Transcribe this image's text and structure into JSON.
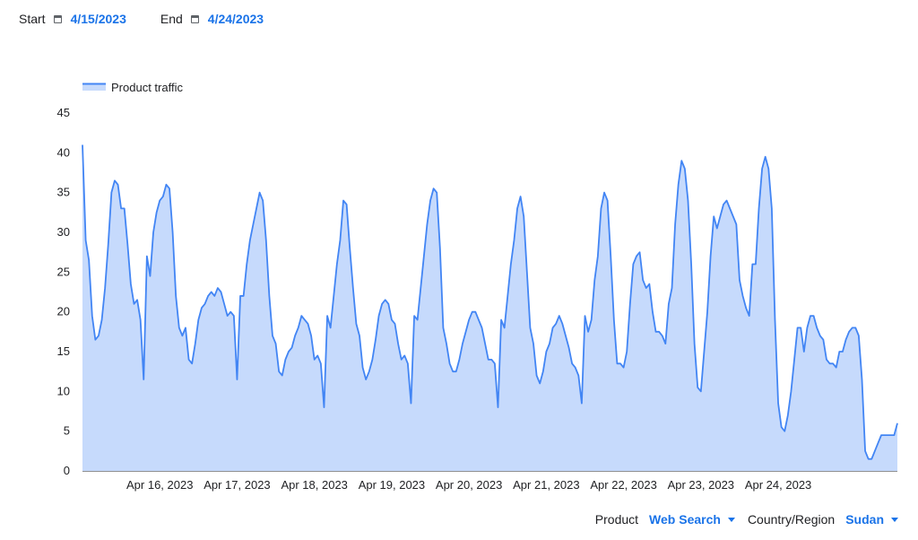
{
  "controls": {
    "start_label": "Start",
    "start_date": "4/15/2023",
    "end_label": "End",
    "end_date": "4/24/2023",
    "product_label": "Product",
    "product_value": "Web Search",
    "region_label": "Country/Region",
    "region_value": "Sudan"
  },
  "colors": {
    "line": "#4285f4",
    "fill": "#c6dafc",
    "accent": "#1a73e8"
  },
  "chart_data": {
    "type": "area",
    "legend": {
      "position": "top-left",
      "items": [
        "Product traffic"
      ]
    },
    "x_range": [
      "Apr 15, 2023",
      "Apr 24, 2023"
    ],
    "x_ticks": [
      "Apr 16, 2023",
      "Apr 17, 2023",
      "Apr 18, 2023",
      "Apr 19, 2023",
      "Apr 20, 2023",
      "Apr 21, 2023",
      "Apr 22, 2023",
      "Apr 23, 2023",
      "Apr 24, 2023"
    ],
    "y_ticks": [
      0,
      5,
      10,
      15,
      20,
      25,
      30,
      35,
      40,
      45
    ],
    "ylim": [
      0,
      45
    ],
    "grid": false,
    "series": [
      {
        "name": "Product traffic",
        "hours_step": 1,
        "values": [
          41,
          29,
          26.5,
          19.5,
          16.5,
          17,
          19,
          23,
          28.5,
          35,
          36.5,
          36,
          33,
          33,
          28.5,
          23.5,
          21,
          21.5,
          19,
          11.5,
          27,
          24.5,
          30,
          32.5,
          34,
          34.5,
          36,
          35.5,
          30,
          22,
          18,
          17,
          18,
          14,
          13.5,
          16,
          19,
          20.5,
          21,
          22,
          22.5,
          22,
          23,
          22.5,
          21,
          19.5,
          20,
          19.5,
          11.5,
          22,
          22,
          26,
          29,
          31,
          33,
          35,
          34,
          29,
          22,
          17,
          16,
          12.5,
          12,
          14,
          15,
          15.5,
          17,
          18,
          19.5,
          19,
          18.5,
          17,
          14,
          14.5,
          13.5,
          8,
          19.5,
          18,
          22,
          26,
          29,
          34,
          33.5,
          28,
          23,
          18.5,
          17,
          13,
          11.5,
          12.5,
          14,
          16.5,
          19.5,
          21,
          21.5,
          21,
          19,
          18.5,
          16,
          14,
          14.5,
          13.5,
          8.5,
          19.5,
          19,
          23,
          27,
          31,
          34,
          35.5,
          35,
          28,
          18,
          16,
          13.5,
          12.5,
          12.5,
          14,
          16,
          17.5,
          19,
          20,
          20,
          19,
          18,
          16,
          14,
          14,
          13.5,
          8,
          19,
          18,
          22,
          26,
          29,
          33,
          34.5,
          32,
          25,
          18,
          16,
          12,
          11,
          12.5,
          15,
          16,
          18,
          18.5,
          19.5,
          18.5,
          17,
          15.5,
          13.5,
          13,
          12,
          8.5,
          19.5,
          17.5,
          19,
          24,
          27,
          33,
          35,
          34,
          27,
          19,
          13.5,
          13.5,
          13,
          15,
          21,
          26,
          27,
          27.5,
          24,
          23,
          23.5,
          20,
          17.5,
          17.5,
          17,
          16,
          21,
          23,
          31,
          36,
          39,
          38,
          34,
          26,
          16,
          10.5,
          10,
          15,
          20,
          27,
          32,
          30.5,
          32,
          33.5,
          34,
          33,
          32,
          31,
          24,
          22,
          20.5,
          19.5,
          26,
          26,
          33,
          38,
          39.5,
          38,
          33,
          19,
          8.5,
          5.5,
          5,
          7,
          10,
          14,
          18,
          18,
          15,
          18,
          19.5,
          19.5,
          18,
          17,
          16.5,
          14,
          13.5,
          13.5,
          13,
          15,
          15,
          16.5,
          17.5,
          18,
          18,
          17,
          11.5,
          2.5,
          1.5,
          1.5,
          2.5,
          3.5,
          4.5,
          4.5,
          4.5,
          4.5,
          4.5,
          6
        ]
      }
    ]
  }
}
